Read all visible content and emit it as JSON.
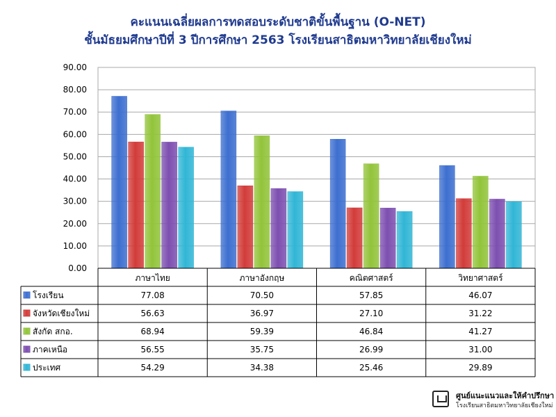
{
  "chart_data": {
    "type": "bar",
    "title": "คะแนนเฉลี่ยผลการทดสอบระดับชาติขั้นพื้นฐาน (O-NET)",
    "subtitle": "ชั้นมัธยมศึกษาปีที่ 3 ปีการศึกษา 2563 โรงเรียนสาธิตมหาวิทยาลัยเชียงใหม่",
    "categories": [
      "ภาษาไทย",
      "ภาษาอังกฤษ",
      "คณิตศาสตร์",
      "วิทยาศาสตร์"
    ],
    "series": [
      {
        "name": "โรงเรียน",
        "values": [
          77.08,
          70.5,
          57.85,
          46.07
        ],
        "color": "#3d6fd0"
      },
      {
        "name": "จังหวัดเชียงใหม่",
        "values": [
          56.63,
          36.97,
          27.1,
          31.22
        ],
        "color": "#d23c3a"
      },
      {
        "name": "สังกัด สกอ.",
        "values": [
          68.94,
          59.39,
          46.84,
          41.27
        ],
        "color": "#92c43a"
      },
      {
        "name": "ภาคเหนือ",
        "values": [
          56.55,
          35.75,
          26.99,
          31.0
        ],
        "color": "#7d4fb0"
      },
      {
        "name": "ประเทศ",
        "values": [
          54.29,
          34.38,
          25.46,
          29.89
        ],
        "color": "#31b6d6"
      }
    ],
    "value_labels": [
      [
        "77.08",
        "70.50",
        "57.85",
        "46.07"
      ],
      [
        "56.63",
        "36.97",
        "27.10",
        "31.22"
      ],
      [
        "68.94",
        "59.39",
        "46.84",
        "41.27"
      ],
      [
        "56.55",
        "35.75",
        "26.99",
        "31.00"
      ],
      [
        "54.29",
        "34.38",
        "25.46",
        "29.89"
      ]
    ],
    "ylim": [
      0,
      90
    ],
    "yticks": [
      "0.00",
      "10.00",
      "20.00",
      "30.00",
      "40.00",
      "50.00",
      "60.00",
      "70.00",
      "80.00",
      "90.00"
    ],
    "grid": true,
    "legend": "data-table"
  },
  "logo": {
    "line1": "ศูนย์แนะแนวและให้คำปรึกษา",
    "line2": "โรงเรียนสาธิตมหาวิทยาลัยเชียงใหม่"
  }
}
